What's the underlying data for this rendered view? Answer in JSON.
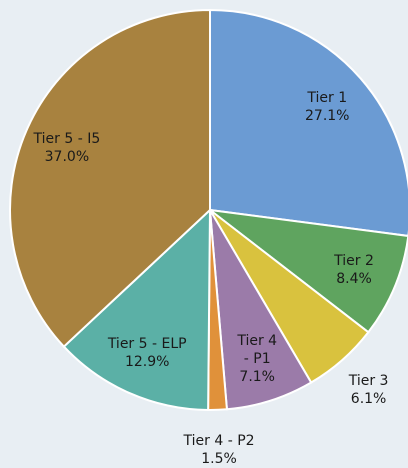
{
  "chart_data": {
    "type": "pie",
    "categories": [
      "Tier 1",
      "Tier 2",
      "Tier 3",
      "Tier 4 - P1",
      "Tier 4 - P2",
      "Tier 5 - ELP",
      "Tier 5 - I5"
    ],
    "values": [
      27.1,
      8.4,
      6.1,
      7.1,
      1.5,
      12.9,
      37.0
    ],
    "value_labels": [
      "27.1%",
      "8.4%",
      "6.1%",
      "7.1%",
      "1.5%",
      "12.9%",
      "37.0%"
    ],
    "colors": [
      "#6b9bd3",
      "#5fa45f",
      "#d9c23e",
      "#9b7ba9",
      "#e0913a",
      "#5bb0a6",
      "#a8823f"
    ]
  }
}
